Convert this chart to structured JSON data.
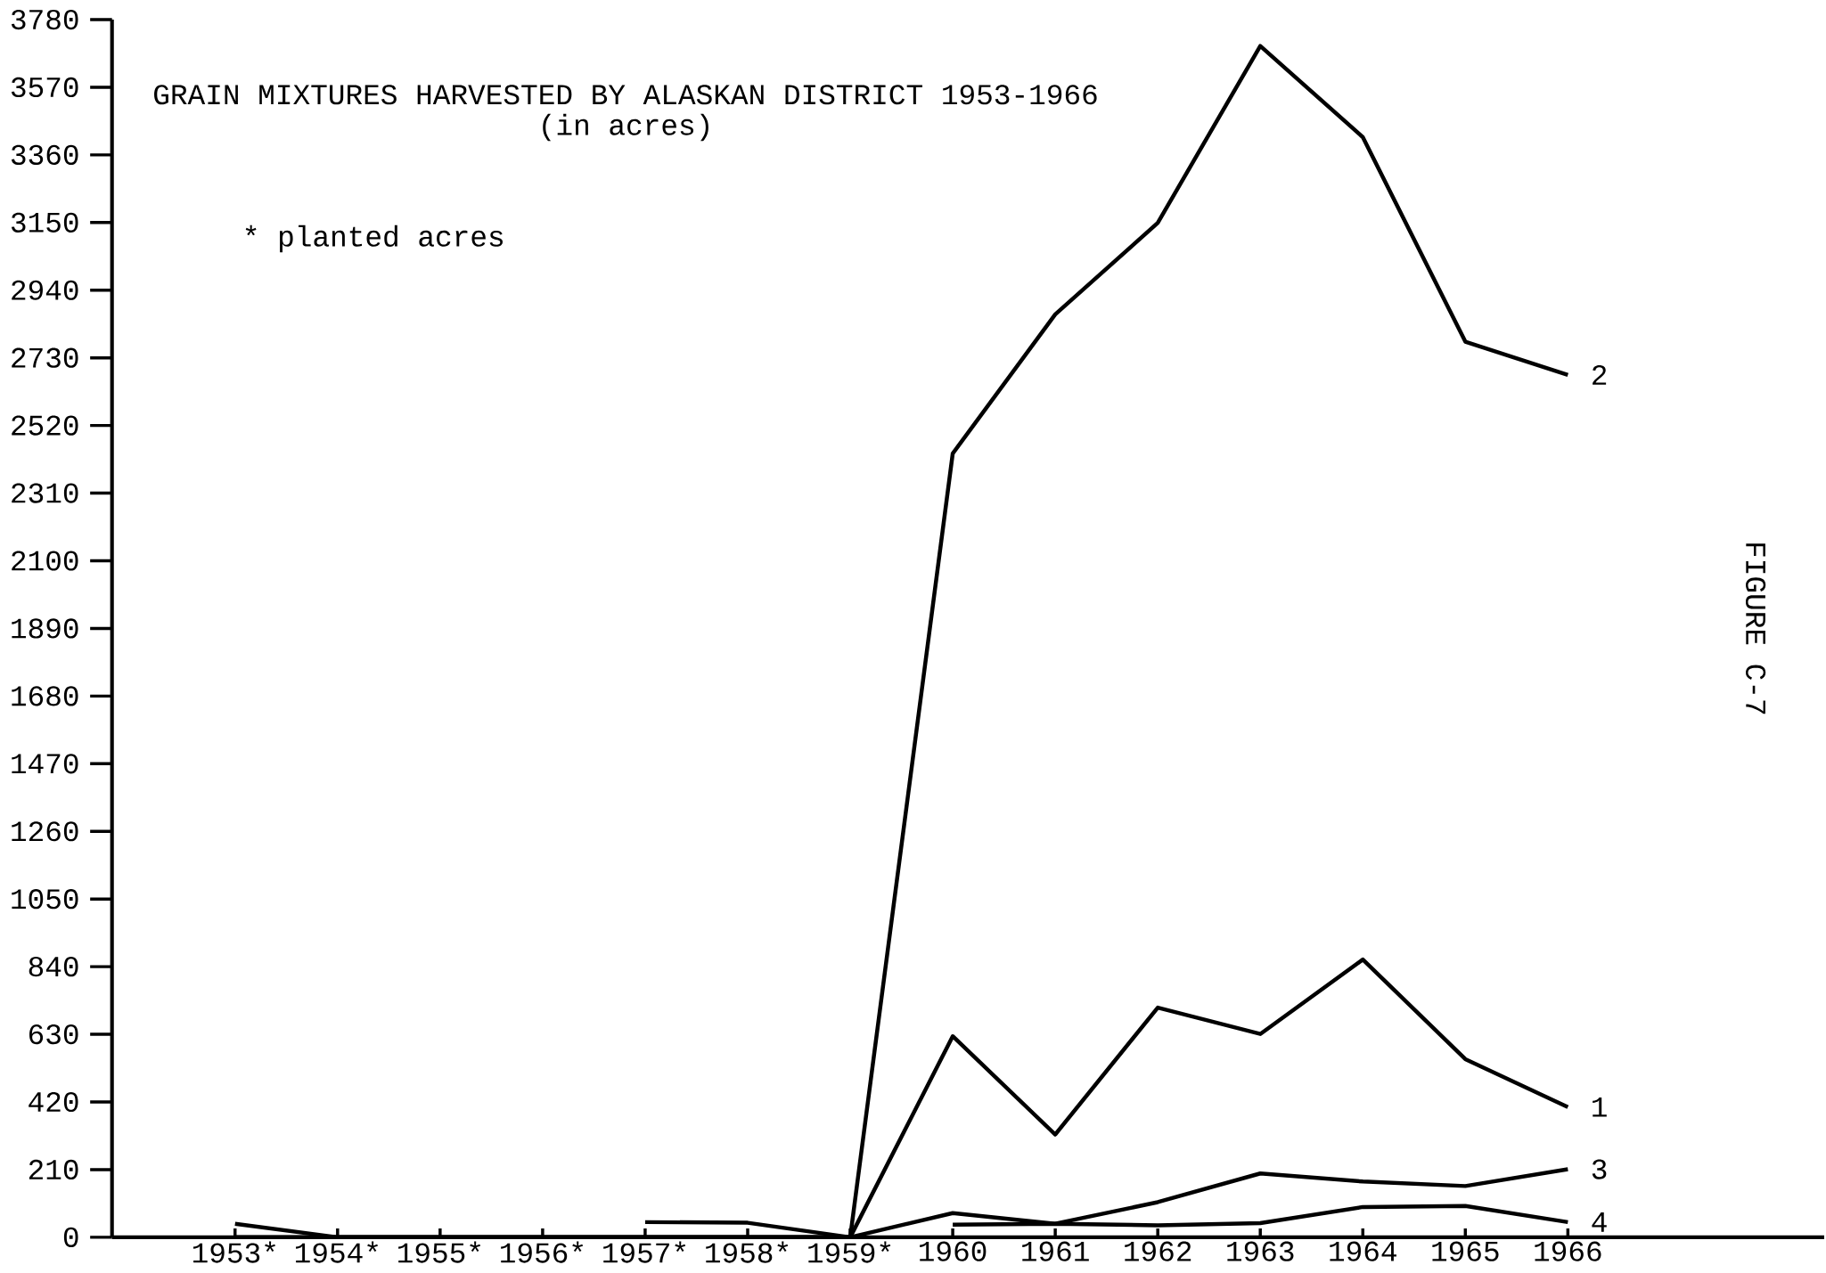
{
  "chart_data": {
    "type": "line",
    "title": "GRAIN MIXTURES HARVESTED BY ALASKAN DISTRICT 1953-1966",
    "subtitle": "(in acres)",
    "annotations": [
      "* planted acres",
      "FIGURE C-7"
    ],
    "categories": [
      "1953*",
      "1954*",
      "1955*",
      "1956*",
      "1957*",
      "1958*",
      "1959*",
      "1960",
      "1961",
      "1962",
      "1963",
      "1964",
      "1965",
      "1966"
    ],
    "series": [
      {
        "name": "1",
        "color": "#000000",
        "values": [
          42,
          0,
          0,
          0,
          0,
          0,
          0,
          624,
          319,
          713,
          631,
          862,
          553,
          404
        ]
      },
      {
        "name": "2",
        "color": "#000000",
        "values": [
          null,
          null,
          null,
          null,
          47,
          45,
          0,
          2433,
          2865,
          3149,
          3698,
          3415,
          2780,
          2677
        ]
      },
      {
        "name": "3",
        "color": "#000000",
        "values": [
          0,
          0,
          0,
          0,
          0,
          0,
          0,
          75,
          42,
          109,
          198,
          173,
          159,
          211
        ]
      },
      {
        "name": "4",
        "color": "#000000",
        "values": [
          null,
          null,
          null,
          null,
          null,
          null,
          null,
          39,
          42,
          37,
          44,
          94,
          97,
          47
        ]
      }
    ],
    "ylim": [
      0,
      3780
    ],
    "yticks": [
      0,
      210,
      420,
      630,
      840,
      1050,
      1260,
      1470,
      1680,
      1890,
      2100,
      2310,
      2520,
      2730,
      2940,
      3150,
      3360,
      3570,
      3780
    ]
  }
}
